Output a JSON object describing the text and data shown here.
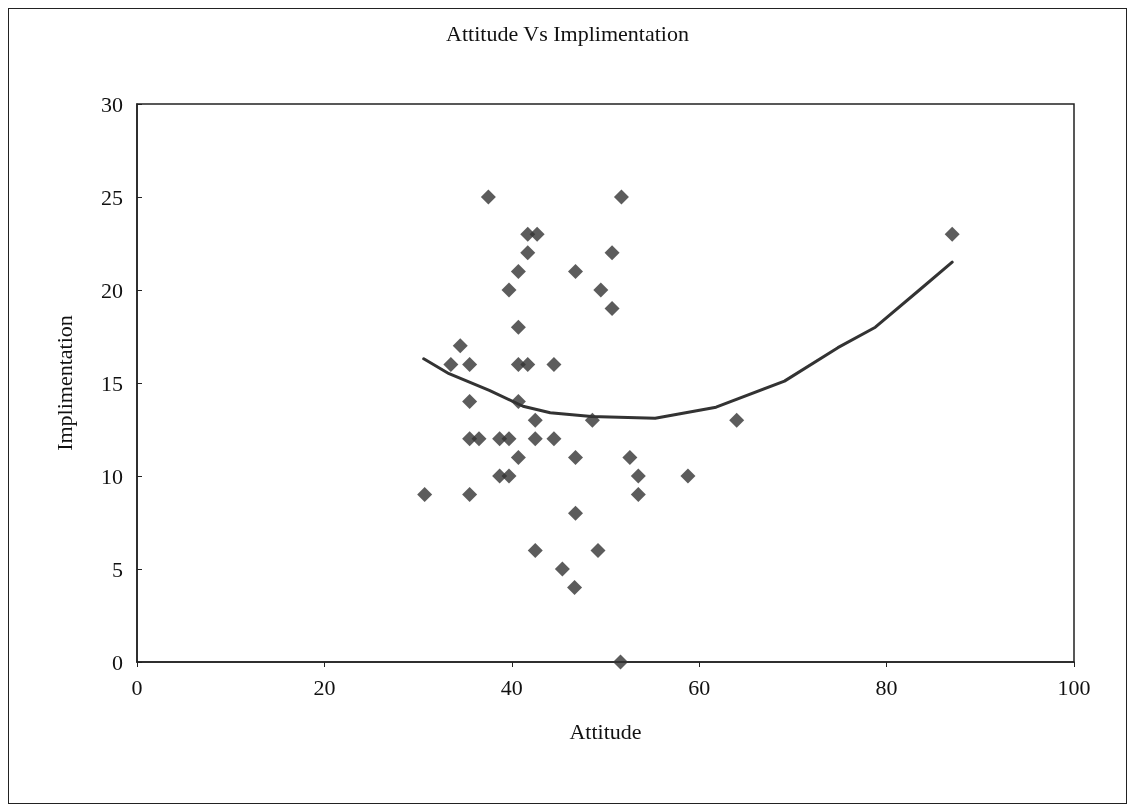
{
  "chart_data": {
    "type": "scatter",
    "title": "Attitude Vs Implimentation",
    "xlabel": "Attitude",
    "ylabel": "Implimentation",
    "xlim": [
      0,
      100
    ],
    "xticks": [
      0,
      20,
      40,
      60,
      80,
      100
    ],
    "ylim": [
      0,
      30
    ],
    "yticks": [
      0,
      5,
      10,
      15,
      20,
      25,
      30
    ],
    "marker": "diamond",
    "series": [
      {
        "color": "#333333",
        "x": [
          37.5,
          41.7,
          42.7,
          41.7,
          40.7,
          39.7,
          46.8,
          49.5,
          40.7,
          34.5,
          33.5,
          35.5,
          40.7,
          41.7,
          44.5,
          35.5,
          40.7,
          42.5,
          48.6,
          35.5,
          36.5,
          38.7,
          39.7,
          42.5,
          44.5,
          40.7,
          46.8,
          38.7,
          39.7,
          30.7,
          35.5,
          46.8,
          42.5,
          45.4,
          46.7,
          49.2,
          51.7,
          50.7,
          50.7,
          87.0,
          64.0,
          52.6,
          53.5,
          58.8,
          53.5,
          51.6
        ],
        "values": [
          25,
          23,
          23,
          22,
          21,
          20,
          21,
          20,
          18,
          17,
          16,
          16,
          16,
          16,
          16,
          14,
          14,
          13,
          13,
          12,
          12,
          12,
          12,
          12,
          12,
          11,
          11,
          10,
          10,
          9,
          9,
          8,
          6,
          5,
          4,
          6,
          25,
          22,
          19,
          23,
          13,
          11,
          10,
          10,
          9,
          0
        ]
      },
      {
        "type": "line",
        "color": "#333333",
        "marker": "none",
        "x": [
          30.6,
          33.3,
          37.6,
          41.2,
          44.1,
          48.5,
          55.3,
          61.8,
          69.1,
          74.8,
          78.8,
          83.5,
          87.0
        ],
        "values": [
          16.3,
          15.5,
          14.6,
          13.75,
          13.4,
          13.2,
          13.1,
          13.7,
          15.1,
          16.9,
          18.0,
          20.0,
          21.5
        ]
      }
    ]
  }
}
